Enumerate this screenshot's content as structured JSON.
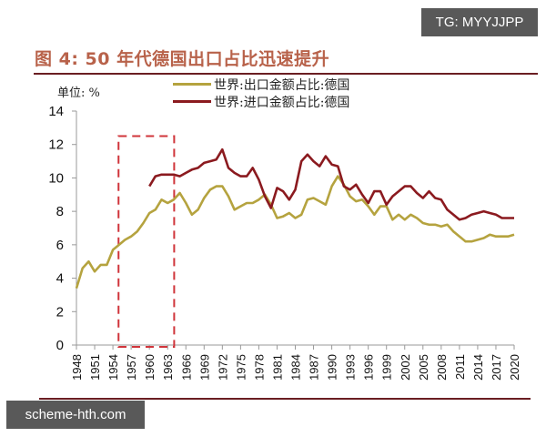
{
  "watermarks": {
    "top": "TG: MYYJJPP",
    "bottom": "scheme-hth.com"
  },
  "header": {
    "title": "图 4:  50 年代德国出口占比迅速提升",
    "unit": "单位:  %"
  },
  "colors": {
    "export": "#b5a33f",
    "import": "#8b1a1f",
    "highlight_box": "#d0343a",
    "title": "#b8624a",
    "rule": "#6a1e22"
  },
  "chart_data": {
    "type": "line",
    "title": "图 4: 50 年代德国出口占比迅速提升",
    "xlabel": "",
    "ylabel": "单位: %",
    "ylim": [
      0,
      14
    ],
    "yticks": [
      0,
      2,
      4,
      6,
      8,
      10,
      12,
      14
    ],
    "xlim": [
      1948,
      2020
    ],
    "xtick_labels": [
      "1948",
      "1951",
      "1954",
      "1957",
      "1960",
      "1963",
      "1966",
      "1969",
      "1972",
      "1975",
      "1978",
      "1981",
      "1984",
      "1987",
      "1990",
      "1993",
      "1996",
      "1999",
      "2002",
      "2005",
      "2008",
      "2011",
      "2014",
      "2017",
      "2020"
    ],
    "grid": false,
    "legend_position": "top-center",
    "annotations": [
      {
        "type": "dashed-rectangle",
        "x_from": 1955,
        "x_to": 1964,
        "y_from": 0,
        "y_to": 12.5,
        "note": "highlights 1950s export share rise"
      }
    ],
    "series": [
      {
        "name": "世界:出口金额占比:德国",
        "color": "#b5a33f",
        "start_year": 1948,
        "values": [
          3.4,
          4.6,
          5.0,
          4.4,
          4.8,
          4.8,
          5.7,
          6.0,
          6.3,
          6.5,
          6.8,
          7.3,
          7.9,
          8.1,
          8.7,
          8.5,
          8.7,
          9.1,
          8.5,
          7.8,
          8.1,
          8.8,
          9.3,
          9.5,
          9.5,
          8.9,
          8.1,
          8.3,
          8.5,
          8.5,
          8.7,
          9.0,
          8.4,
          7.6,
          7.7,
          7.9,
          7.6,
          7.8,
          8.7,
          8.8,
          8.6,
          8.4,
          9.5,
          10.1,
          9.6,
          8.9,
          8.6,
          8.7,
          8.3,
          7.8,
          8.3,
          8.3,
          7.5,
          7.8,
          7.5,
          7.8,
          7.6,
          7.3,
          7.2,
          7.2,
          7.1,
          7.2,
          6.8,
          6.5,
          6.2,
          6.2,
          6.3,
          6.4,
          6.6,
          6.5,
          6.5,
          6.5,
          6.6
        ]
      },
      {
        "name": "世界:进口金额占比:德国",
        "color": "#8b1a1f",
        "start_year": 1960,
        "values": [
          9.5,
          10.1,
          10.2,
          10.2,
          10.2,
          10.1,
          10.3,
          10.5,
          10.6,
          10.9,
          11.0,
          11.1,
          11.7,
          10.6,
          10.3,
          10.1,
          10.1,
          10.6,
          9.9,
          8.9,
          8.2,
          9.4,
          9.2,
          8.7,
          9.3,
          11.0,
          11.4,
          11.0,
          10.7,
          11.3,
          10.8,
          10.7,
          9.5,
          9.3,
          9.6,
          9.0,
          8.5,
          9.2,
          9.2,
          8.4,
          8.9,
          9.2,
          9.5,
          9.5,
          9.1,
          8.8,
          9.2,
          8.8,
          8.7,
          8.1,
          7.8,
          7.5,
          7.6,
          7.8,
          7.9,
          8.0,
          7.9,
          7.8,
          7.6,
          7.6,
          7.6
        ]
      }
    ]
  }
}
